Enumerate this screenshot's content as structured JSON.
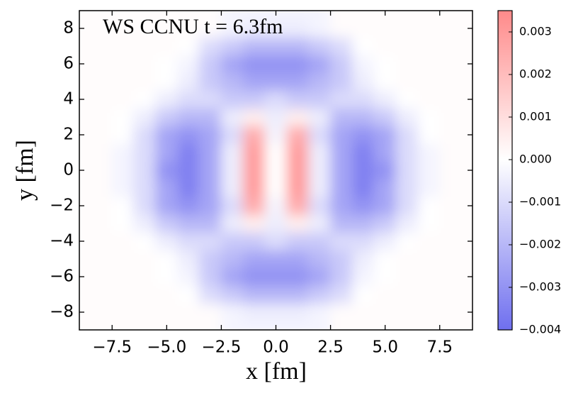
{
  "chart_data": {
    "type": "contour",
    "title": "WS  CCNU  t = 6.3fm",
    "xlabel": "x [fm]",
    "ylabel": "y [fm]",
    "xlim": [
      -9,
      9
    ],
    "ylim": [
      -9,
      9
    ],
    "xticks": [
      {
        "value": -7.5,
        "label": "−7.5"
      },
      {
        "value": -5,
        "label": "−5.0"
      },
      {
        "value": -2.5,
        "label": "−2.5"
      },
      {
        "value": 0,
        "label": "0.0"
      },
      2.5,
      {
        "value": 5,
        "label": "5.0"
      },
      7.5
    ],
    "yticks": [
      {
        "value": -8,
        "label": "−8"
      },
      {
        "value": -6,
        "label": "−6"
      },
      {
        "value": -4,
        "label": "−4"
      },
      {
        "value": -2,
        "label": "−2"
      },
      0,
      2,
      4,
      6,
      8
    ],
    "clim": [
      -0.004,
      0.0035
    ],
    "cticks": [
      {
        "value": -0.004,
        "label": "−0.004"
      },
      {
        "value": -0.003,
        "label": "−0.003"
      },
      {
        "value": -0.002,
        "label": "−0.002"
      },
      {
        "value": -0.001,
        "label": "−0.001"
      },
      {
        "value": 0,
        "label": "0.000"
      },
      0.001,
      0.002,
      0.003
    ],
    "cmap": [
      "#6f6fef",
      "#ffffff",
      "#ff8a8a"
    ],
    "x": [
      -9,
      -8,
      -7,
      -6,
      -5,
      -4,
      -3,
      -2,
      -1,
      0,
      1,
      2,
      3,
      4,
      5,
      6,
      7,
      8,
      9
    ],
    "y": [
      -9,
      -8,
      -7,
      -6,
      -5,
      -4,
      -3,
      -2,
      -1,
      0,
      1,
      2,
      3,
      4,
      5,
      6,
      7,
      8,
      9
    ],
    "z": [
      [
        0.0001,
        0.0001,
        0.0001,
        0.0001,
        0.0001,
        0.0001,
        0.0001,
        -0.0003,
        -0.0003,
        -0.0003,
        -0.0003,
        -0.0003,
        0.0001,
        0.0001,
        0.0001,
        0.0001,
        0.0001,
        0.0001,
        0.0001
      ],
      [
        0.0001,
        0.0001,
        0.0001,
        0.0001,
        0.0001,
        0.0001,
        0.0001,
        -0.0003,
        -0.0005,
        -0.0005,
        -0.0005,
        -0.0003,
        0.0001,
        0.0001,
        0.0001,
        0.0001,
        0.0001,
        0.0001,
        0.0001
      ],
      [
        0.0001,
        0.0001,
        0.0001,
        0.0001,
        0.0001,
        0,
        -0.001,
        -0.0015,
        -0.002,
        -0.002,
        -0.002,
        -0.0015,
        -0.001,
        0,
        0.0001,
        0.0001,
        0.0001,
        0.0001,
        0.0001
      ],
      [
        0.0001,
        0.0001,
        0.0001,
        0.0001,
        0,
        -0.0003,
        -0.0015,
        -0.0025,
        -0.003,
        -0.003,
        -0.003,
        -0.0025,
        -0.0015,
        -0.0003,
        0,
        0.0001,
        0.0001,
        0.0001,
        0.0001
      ],
      [
        0.0001,
        0.0001,
        0.0001,
        0.0001,
        0,
        -0.0005,
        -0.0015,
        -0.002,
        -0.0025,
        -0.0025,
        -0.0025,
        -0.002,
        -0.0015,
        -0.0005,
        0,
        0.0001,
        0.0001,
        0.0001,
        0.0001
      ],
      [
        0.0001,
        0.0001,
        0.0001,
        0,
        -0.0005,
        -0.001,
        -0.001,
        -0.0015,
        -0.0015,
        -0.001,
        -0.0015,
        -0.0015,
        -0.001,
        -0.001,
        -0.0005,
        0,
        0.0001,
        0.0001,
        0.0001
      ],
      [
        0.0001,
        0.0001,
        0,
        -0.0005,
        -0.0015,
        -0.002,
        -0.002,
        -0.0005,
        0.0005,
        -0.0005,
        0.0005,
        -0.0005,
        -0.002,
        -0.002,
        -0.0015,
        -0.0005,
        0,
        0.0001,
        0.0001
      ],
      [
        0.0001,
        0.0001,
        0,
        -0.001,
        -0.0025,
        -0.003,
        -0.0025,
        -0.001,
        0.0025,
        -0.0003,
        0.0025,
        -0.001,
        -0.0025,
        -0.003,
        -0.0025,
        -0.001,
        0,
        0.0001,
        0.0001
      ],
      [
        0.0001,
        0.0001,
        -0.0003,
        -0.001,
        -0.0025,
        -0.0035,
        -0.0025,
        -0.0005,
        0.003,
        0,
        0.003,
        -0.0005,
        -0.0025,
        -0.0035,
        -0.0025,
        -0.001,
        -0.0003,
        0.0001,
        0.0001
      ],
      [
        0.0001,
        0.0001,
        -0.0003,
        -0.001,
        -0.003,
        -0.0035,
        -0.0025,
        -0.0005,
        0.003,
        0,
        0.003,
        -0.0005,
        -0.0025,
        -0.0035,
        -0.003,
        -0.001,
        -0.0003,
        0.0001,
        0.0001
      ],
      [
        0.0001,
        0.0001,
        -0.0003,
        -0.001,
        -0.0025,
        -0.0035,
        -0.0025,
        -0.0005,
        0.003,
        0,
        0.003,
        -0.0005,
        -0.0025,
        -0.0035,
        -0.0025,
        -0.001,
        -0.0003,
        0.0001,
        0.0001
      ],
      [
        0.0001,
        0.0001,
        0,
        -0.001,
        -0.0025,
        -0.003,
        -0.0025,
        -0.001,
        0.0025,
        -0.0003,
        0.0025,
        -0.001,
        -0.0025,
        -0.003,
        -0.0025,
        -0.001,
        0,
        0.0001,
        0.0001
      ],
      [
        0.0001,
        0.0001,
        0,
        -0.0005,
        -0.0015,
        -0.002,
        -0.002,
        -0.0005,
        0.0005,
        -0.0005,
        0.0005,
        -0.0005,
        -0.002,
        -0.002,
        -0.0015,
        -0.0005,
        0,
        0.0001,
        0.0001
      ],
      [
        0.0001,
        0.0001,
        0.0001,
        0,
        -0.0005,
        -0.001,
        -0.001,
        -0.0015,
        -0.0015,
        -0.001,
        -0.0015,
        -0.0015,
        -0.001,
        -0.001,
        -0.0005,
        0,
        0.0001,
        0.0001,
        0.0001
      ],
      [
        0.0001,
        0.0001,
        0.0001,
        0.0001,
        0,
        -0.0005,
        -0.0015,
        -0.002,
        -0.0025,
        -0.0025,
        -0.0025,
        -0.002,
        -0.0015,
        -0.0005,
        0,
        0.0001,
        0.0001,
        0.0001,
        0.0001
      ],
      [
        0.0001,
        0.0001,
        0.0001,
        0.0001,
        0,
        -0.0003,
        -0.0015,
        -0.0025,
        -0.003,
        -0.003,
        -0.003,
        -0.0025,
        -0.0015,
        -0.0003,
        0,
        0.0001,
        0.0001,
        0.0001,
        0.0001
      ],
      [
        0.0001,
        0.0001,
        0.0001,
        0.0001,
        0.0001,
        0,
        -0.001,
        -0.0015,
        -0.002,
        -0.002,
        -0.002,
        -0.0015,
        -0.001,
        0,
        0.0001,
        0.0001,
        0.0001,
        0.0001,
        0.0001
      ],
      [
        0.0001,
        0.0001,
        0.0001,
        0.0001,
        0.0001,
        0.0001,
        0.0001,
        -0.0003,
        -0.0005,
        -0.0005,
        -0.0005,
        -0.0003,
        0.0001,
        0.0001,
        0.0001,
        0.0001,
        0.0001,
        0.0001,
        0.0001
      ],
      [
        0.0001,
        0.0001,
        0.0001,
        0.0001,
        0.0001,
        0.0001,
        0.0001,
        -0.0003,
        -0.0003,
        -0.0003,
        -0.0003,
        -0.0003,
        0.0001,
        0.0001,
        0.0001,
        0.0001,
        0.0001,
        0.0001,
        0.0001
      ]
    ]
  }
}
